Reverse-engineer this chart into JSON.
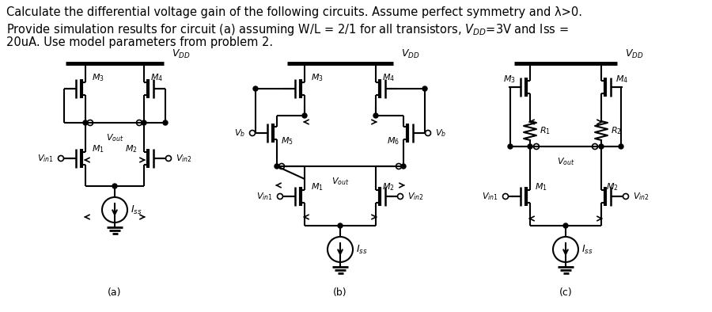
{
  "bg_color": "#ffffff",
  "label_a": "(a)",
  "label_b": "(b)",
  "label_c": "(c)",
  "text1": "Calculate the differential voltage gain of the following circuits. Assume perfect symmetry and λ>0.",
  "text2": "Provide simulation results for circuit (a) assuming W/L = 2/1 for all transistors, V",
  "text2_sub": "DD",
  "text2_end": "=3V and Iss =",
  "text3": "20uA. Use model parameters from problem 2."
}
